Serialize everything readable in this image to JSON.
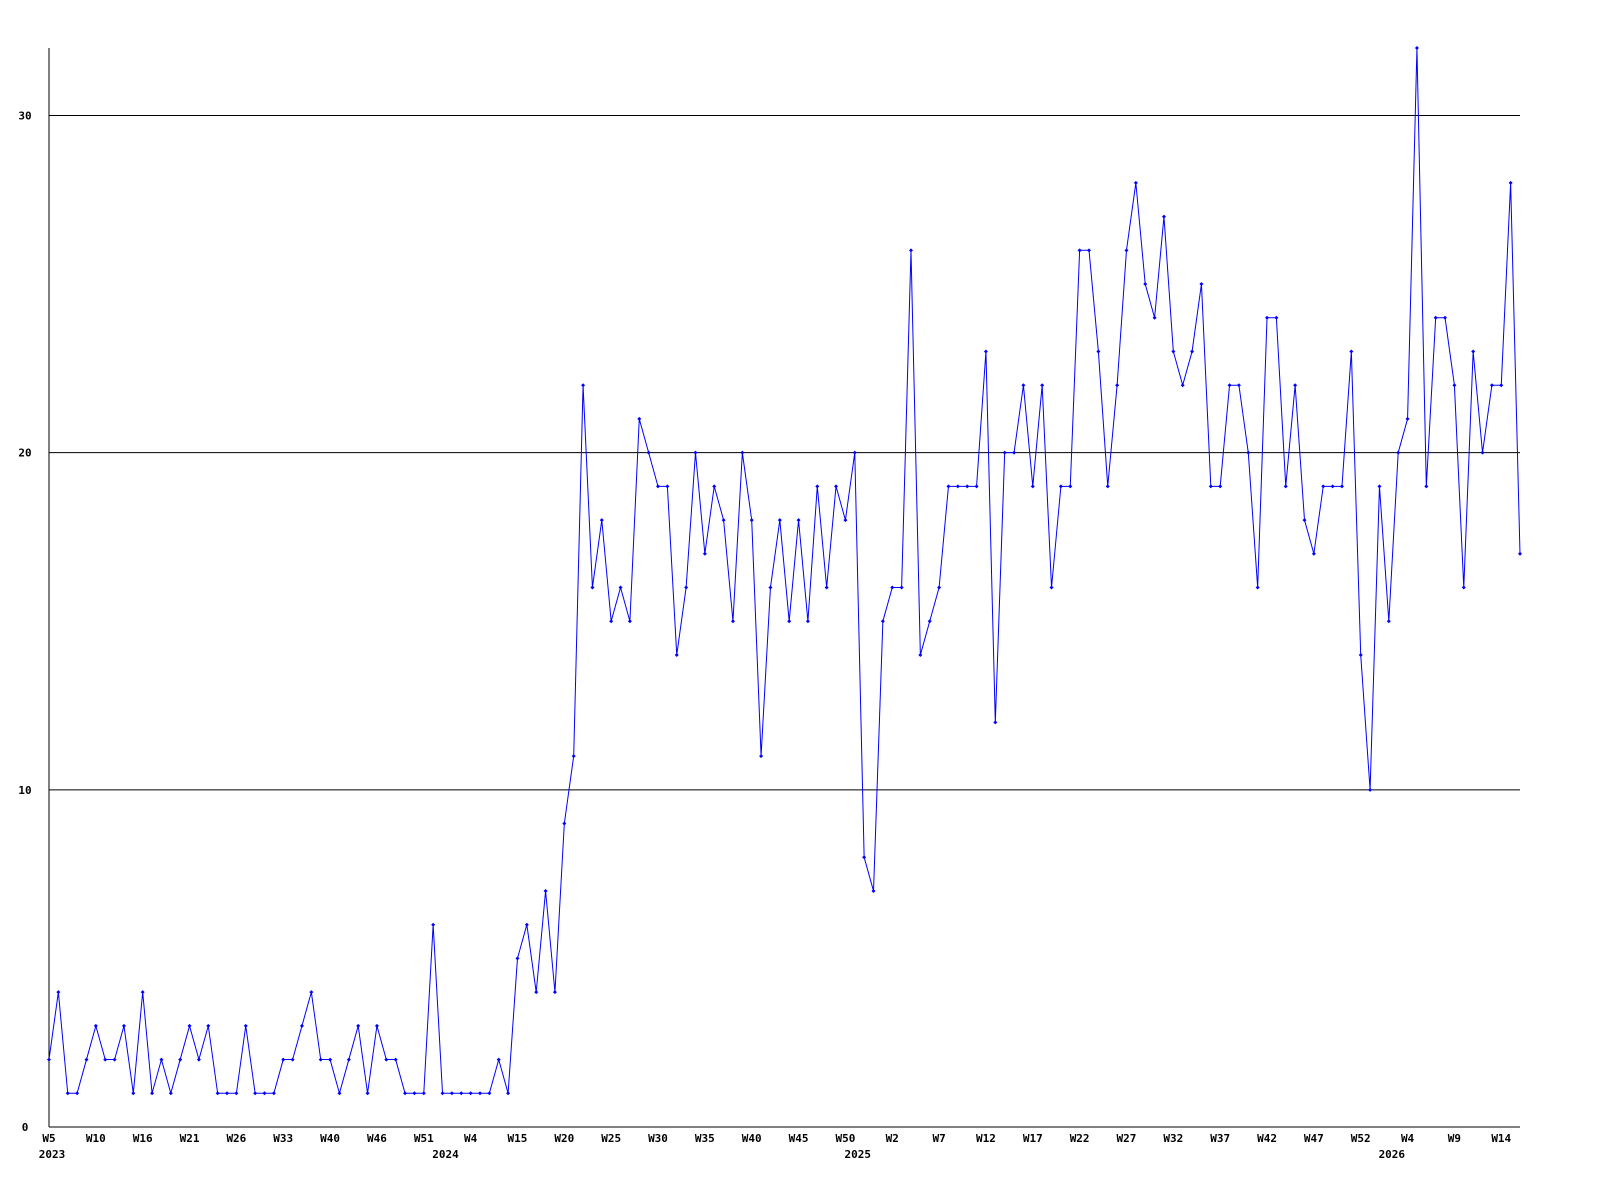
{
  "chart_data": {
    "type": "line",
    "categories": [
      "W5",
      null,
      null,
      null,
      null,
      "W10",
      null,
      null,
      null,
      null,
      "W16",
      null,
      null,
      null,
      null,
      "W21",
      null,
      null,
      null,
      null,
      "W26",
      null,
      null,
      null,
      null,
      "W33",
      null,
      null,
      null,
      null,
      "W40",
      null,
      null,
      null,
      null,
      "W46",
      null,
      null,
      null,
      null,
      "W51",
      null,
      null,
      null,
      null,
      "W4",
      null,
      null,
      null,
      null,
      "W15",
      null,
      null,
      null,
      null,
      "W20",
      null,
      null,
      null,
      null,
      "W25",
      null,
      null,
      null,
      null,
      "W30",
      null,
      null,
      null,
      null,
      "W35",
      null,
      null,
      null,
      null,
      "W40",
      null,
      null,
      null,
      null,
      "W45",
      null,
      null,
      null,
      null,
      "W50",
      null,
      null,
      null,
      null,
      "W2",
      null,
      null,
      null,
      null,
      "W7",
      null,
      null,
      null,
      null,
      "W12",
      null,
      null,
      null,
      null,
      "W17",
      null,
      null,
      null,
      null,
      "W22",
      null,
      null,
      null,
      null,
      "W27",
      null,
      null,
      null,
      null,
      "W32",
      null,
      null,
      null,
      null,
      "W37",
      null,
      null,
      null,
      null,
      "W42",
      null,
      null,
      null,
      null,
      "W47",
      null,
      null,
      null,
      null,
      "W52",
      null,
      null,
      null,
      null,
      "W4",
      null,
      null,
      null,
      null,
      "W9",
      null,
      null,
      null,
      null,
      "W14",
      null,
      null
    ],
    "year_categories": [
      "2023",
      null,
      null,
      null,
      null,
      null,
      null,
      null,
      null,
      null,
      null,
      null,
      null,
      null,
      null,
      null,
      null,
      null,
      null,
      null,
      null,
      null,
      null,
      null,
      null,
      null,
      null,
      null,
      null,
      null,
      null,
      null,
      null,
      null,
      null,
      null,
      null,
      null,
      null,
      null,
      null,
      null,
      "2024",
      null,
      null,
      null,
      null,
      null,
      null,
      null,
      null,
      null,
      null,
      null,
      null,
      null,
      null,
      null,
      null,
      null,
      null,
      null,
      null,
      null,
      null,
      null,
      null,
      null,
      null,
      null,
      null,
      null,
      null,
      null,
      null,
      null,
      null,
      null,
      null,
      null,
      null,
      null,
      null,
      null,
      null,
      null,
      "2025",
      null,
      null,
      null,
      null,
      null,
      null,
      null,
      null,
      null,
      null,
      null,
      null,
      null,
      null,
      null,
      null,
      null,
      null,
      null,
      null,
      null,
      null,
      null,
      null,
      null,
      null,
      null,
      null,
      null,
      null,
      null,
      null,
      null,
      null,
      null,
      null,
      null,
      null,
      null,
      null,
      null,
      null,
      null,
      null,
      null,
      null,
      null,
      null,
      null,
      null,
      null,
      null,
      null,
      null,
      null,
      null,
      "2026",
      null,
      null,
      null,
      null,
      null,
      null,
      null,
      null,
      null,
      null,
      null,
      null,
      null,
      null,
      null
    ],
    "series": [
      {
        "color": "#0000ff",
        "values": [
          2,
          4,
          1,
          1,
          2,
          3,
          2,
          2,
          3,
          1,
          4,
          1,
          2,
          1,
          2,
          3,
          2,
          3,
          1,
          1,
          1,
          3,
          1,
          1,
          1,
          2,
          2,
          3,
          4,
          2,
          2,
          1,
          2,
          3,
          1,
          3,
          2,
          2,
          1,
          1,
          1,
          6,
          1,
          1,
          1,
          1,
          1,
          1,
          2,
          1,
          5,
          6,
          4,
          7,
          4,
          9,
          11,
          22,
          16,
          18,
          15,
          16,
          15,
          21,
          20,
          19,
          19,
          14,
          16,
          20,
          17,
          19,
          18,
          15,
          20,
          18,
          11,
          16,
          18,
          15,
          18,
          15,
          19,
          16,
          19,
          18,
          20,
          8,
          7,
          15,
          16,
          16,
          26,
          14,
          15,
          16,
          19,
          19,
          19,
          19,
          23,
          12,
          20,
          20,
          22,
          19,
          22,
          16,
          19,
          19,
          26,
          26,
          23,
          19,
          22,
          26,
          28,
          25,
          24,
          27,
          23,
          22,
          23,
          25,
          19,
          19,
          22,
          22,
          20,
          16,
          24,
          24,
          19,
          22,
          18,
          17,
          19,
          19,
          19,
          23,
          14,
          10,
          19,
          15,
          20,
          21,
          32,
          19,
          24,
          24,
          22,
          16,
          23,
          20,
          22,
          22,
          28,
          17
        ]
      }
    ],
    "ylim": [
      0,
      32
    ],
    "yticks": [
      0,
      10,
      20,
      30
    ],
    "grid": true
  }
}
